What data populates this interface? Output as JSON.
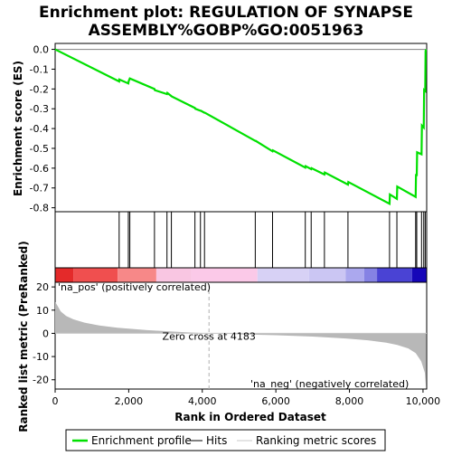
{
  "chart_data": {
    "type": "line",
    "title_line1": "Enrichment plot: REGULATION OF SYNAPSE",
    "title_line2": "ASSEMBLY%GOBP%GO:0051963",
    "es_ylabel": "Enrichment score (ES)",
    "rank_ylabel": "Ranked list metric (PreRanked)",
    "xlabel": "Rank in Ordered Dataset",
    "xlim": [
      0,
      10100
    ],
    "es_ylim": [
      -0.82,
      0.03
    ],
    "metric_ylim": [
      -24,
      22
    ],
    "x_ticks": [
      0,
      2000,
      4000,
      6000,
      8000,
      10000
    ],
    "x_tick_labels": [
      "0",
      "2,000",
      "4,000",
      "6,000",
      "8,000",
      "10,000"
    ],
    "es_ticks": [
      0.0,
      -0.1,
      -0.2,
      -0.3,
      -0.4,
      -0.5,
      -0.6,
      -0.7,
      -0.8
    ],
    "es_tick_labels": [
      "0.0",
      "-0.1",
      "-0.2",
      "-0.3",
      "-0.4",
      "-0.5",
      "-0.6",
      "-0.7",
      "-0.8"
    ],
    "metric_ticks": [
      20,
      10,
      0,
      -10,
      -20
    ],
    "metric_tick_labels": [
      "20",
      "10",
      "0",
      "-10",
      "-20"
    ],
    "series": [
      {
        "name": "Enrichment profile",
        "color": "#00e000",
        "x": [
          0,
          1740,
          1745,
          1990,
          2000,
          2030,
          2700,
          2710,
          3040,
          3050,
          3160,
          3170,
          3800,
          3810,
          3950,
          3960,
          4060,
          4070,
          5440,
          5450,
          5910,
          5920,
          6800,
          6810,
          6960,
          6970,
          7320,
          7330,
          7960,
          7970,
          9090,
          9100,
          9290,
          9300,
          9800,
          9810,
          9830,
          9840,
          9960,
          9970,
          10020,
          10030,
          10060,
          10070,
          10080
        ],
        "y": [
          0.0,
          -0.162,
          -0.152,
          -0.172,
          -0.16,
          -0.147,
          -0.2,
          -0.206,
          -0.226,
          -0.22,
          -0.236,
          -0.238,
          -0.296,
          -0.3,
          -0.31,
          -0.31,
          -0.32,
          -0.32,
          -0.462,
          -0.462,
          -0.515,
          -0.51,
          -0.597,
          -0.59,
          -0.605,
          -0.6,
          -0.632,
          -0.622,
          -0.683,
          -0.67,
          -0.78,
          -0.733,
          -0.755,
          -0.693,
          -0.745,
          -0.63,
          -0.64,
          -0.52,
          -0.53,
          -0.385,
          -0.395,
          -0.205,
          -0.21,
          -0.01,
          0.0
        ]
      }
    ],
    "hits": [
      1740,
      1990,
      2030,
      2700,
      3040,
      3160,
      3800,
      3950,
      4060,
      5440,
      5910,
      6800,
      6960,
      7320,
      7960,
      9090,
      9290,
      9800,
      9830,
      9960,
      10020,
      10060
    ],
    "metric_points": {
      "x": [
        0,
        60,
        150,
        300,
        500,
        800,
        1200,
        1700,
        2500,
        3500,
        4183,
        5000,
        6000,
        7000,
        7800,
        8500,
        9000,
        9300,
        9600,
        9800,
        9950,
        10050,
        10080
      ],
      "y": [
        13.5,
        12.0,
        9.5,
        7.5,
        6.0,
        4.6,
        3.4,
        2.4,
        1.4,
        0.5,
        0.0,
        -0.4,
        -0.8,
        -1.4,
        -2.1,
        -3.0,
        -4.0,
        -5.0,
        -6.5,
        -8.5,
        -12.0,
        -17.0,
        -23.0
      ]
    },
    "zero_cross_label": "Zero cross at 4183",
    "zero_cross_x": 4183,
    "pos_label": "'na_pos' (positively correlated)",
    "neg_label": "'na_neg' (negatively correlated)",
    "colorbar_segments": [
      {
        "to": 500,
        "color": "#e42a2a"
      },
      {
        "to": 1700,
        "color": "#f04f4f"
      },
      {
        "to": 2750,
        "color": "#f78888"
      },
      {
        "to": 3700,
        "color": "#f9c6e2"
      },
      {
        "to": 5500,
        "color": "#fbc9e8"
      },
      {
        "to": 6900,
        "color": "#d7d1f5"
      },
      {
        "to": 7900,
        "color": "#cbc6f3"
      },
      {
        "to": 8400,
        "color": "#aba8ee"
      },
      {
        "to": 8750,
        "color": "#8582e4"
      },
      {
        "to": 9700,
        "color": "#4a43d4"
      },
      {
        "to": 10100,
        "color": "#1606b8"
      }
    ],
    "legend": [
      {
        "label": "Enrichment profile",
        "color": "#00e000",
        "style": "thick"
      },
      {
        "label": "Hits",
        "color": "#000000",
        "style": "thin"
      },
      {
        "label": "Ranking metric scores",
        "color": "#c8c8c8",
        "style": "thin"
      }
    ],
    "colors": {
      "pos_label": "#e02020",
      "neg_label": "#2020e0",
      "metric_fill": "#b8b8b8",
      "zero_line": "#c8c8c8"
    }
  }
}
